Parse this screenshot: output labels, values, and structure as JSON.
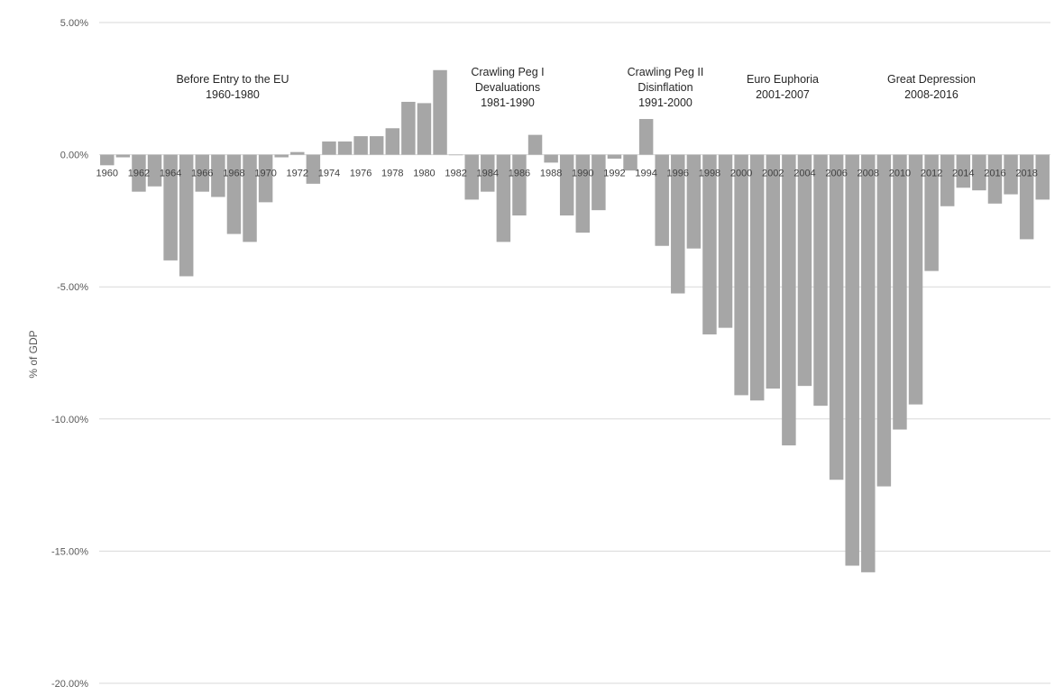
{
  "chart_data": {
    "type": "bar",
    "title": "",
    "xlabel": "",
    "ylabel": "% of GDP",
    "ylim": [
      -20,
      5
    ],
    "yticks": [
      5,
      0,
      -5,
      -10,
      -15,
      -20
    ],
    "ytick_labels": [
      "5.00%",
      "0.00%",
      "-5.00%",
      "-10.00%",
      "-15.00%",
      "-20.00%"
    ],
    "grid": true,
    "bar_color": "#a6a6a6",
    "categories": [
      "1960",
      "1961",
      "1962",
      "1963",
      "1964",
      "1965",
      "1966",
      "1967",
      "1968",
      "1969",
      "1970",
      "1971",
      "1972",
      "1973",
      "1974",
      "1975",
      "1976",
      "1977",
      "1978",
      "1979",
      "1980",
      "1981",
      "1982",
      "1983",
      "1984",
      "1985",
      "1986",
      "1987",
      "1988",
      "1989",
      "1990",
      "1991",
      "1992",
      "1993",
      "1994",
      "1995",
      "1996",
      "1997",
      "1998",
      "1999",
      "2000",
      "2001",
      "2002",
      "2003",
      "2004",
      "2005",
      "2006",
      "2007",
      "2008",
      "2009",
      "2010",
      "2011",
      "2012",
      "2013",
      "2014",
      "2015",
      "2016",
      "2017",
      "2018",
      "2019"
    ],
    "values": [
      -0.4,
      -0.1,
      -1.4,
      -1.2,
      -4.0,
      -4.6,
      -1.4,
      -1.6,
      -3.0,
      -3.3,
      -1.8,
      -0.1,
      0.1,
      -1.1,
      0.5,
      0.5,
      0.7,
      0.7,
      1.0,
      2.0,
      1.95,
      3.2,
      0.0,
      -1.7,
      -1.4,
      -3.3,
      -2.3,
      0.75,
      -0.3,
      -2.3,
      -2.95,
      -2.1,
      -0.15,
      -0.6,
      1.35,
      -3.45,
      -5.25,
      -3.55,
      -6.8,
      -6.55,
      -9.1,
      -9.3,
      -8.85,
      -11.0,
      -8.75,
      -9.5,
      -12.3,
      -15.55,
      -15.8,
      -12.55,
      -10.4,
      -9.45,
      -4.4,
      -1.95,
      -1.25,
      -1.35,
      -1.85,
      -1.5,
      -3.2,
      -1.7
    ],
    "xtick_labels": [
      "1960",
      "1962",
      "1964",
      "1966",
      "1968",
      "1970",
      "1972",
      "1974",
      "1976",
      "1978",
      "1980",
      "1982",
      "1984",
      "1986",
      "1988",
      "1990",
      "1992",
      "1994",
      "1996",
      "1998",
      "2000",
      "2002",
      "2004",
      "2006",
      "2008",
      "2010",
      "2012",
      "2014",
      "2016",
      "2018"
    ],
    "annotations": [
      {
        "lines": [
          "Before Entry to the EU",
          "1960-1980"
        ]
      },
      {
        "lines": [
          "Crawling Peg I",
          "Devaluations",
          "1981-1990"
        ]
      },
      {
        "lines": [
          "Crawling Peg II",
          "Disinflation",
          "1991-2000"
        ]
      },
      {
        "lines": [
          "Euro Euphoria",
          "2001-2007"
        ]
      },
      {
        "lines": [
          "Great Depression",
          "2008-2016"
        ]
      }
    ]
  }
}
